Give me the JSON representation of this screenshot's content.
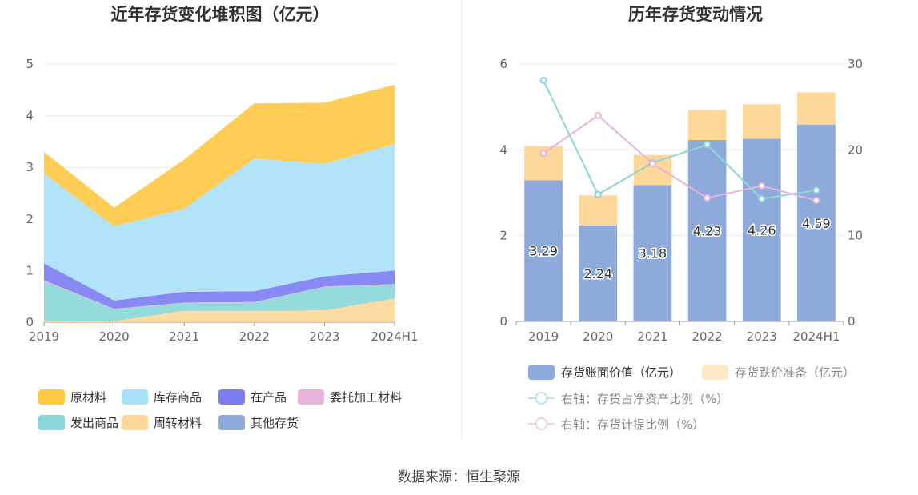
{
  "source_label": "数据来源：恒生聚源",
  "chart_data": [
    {
      "type": "area",
      "stacked": true,
      "title": "近年存货变化堆积图（亿元）",
      "categories": [
        "2019",
        "2020",
        "2021",
        "2022",
        "2023",
        "2024H1"
      ],
      "ylim": [
        0,
        5
      ],
      "yticks": [
        "0",
        "1",
        "2",
        "3",
        "4",
        "5"
      ],
      "grid": true,
      "legend_position": "bottom",
      "series": [
        {
          "name": "其他存货",
          "color": "#8eaadb",
          "values": [
            0,
            0,
            0,
            0,
            0,
            0
          ]
        },
        {
          "name": "周转材料",
          "color": "#fdd89a",
          "values": [
            0.03,
            0.02,
            0.22,
            0.22,
            0.23,
            0.46
          ]
        },
        {
          "name": "发出商品",
          "color": "#8ad6d8",
          "values": [
            0.76,
            0.23,
            0.15,
            0.16,
            0.45,
            0.27
          ]
        },
        {
          "name": "委托加工材料",
          "color": "#e8b3d8",
          "values": [
            0.02,
            0.01,
            0.01,
            0.01,
            0.01,
            0.01
          ]
        },
        {
          "name": "在产品",
          "color": "#7b7cf2",
          "values": [
            0.33,
            0.16,
            0.21,
            0.21,
            0.2,
            0.26
          ]
        },
        {
          "name": "库存商品",
          "color": "#a9e1fa",
          "values": [
            1.74,
            1.44,
            1.61,
            2.57,
            2.18,
            2.45
          ]
        },
        {
          "name": "原材料",
          "color": "#ffc841",
          "values": [
            0.42,
            0.36,
            0.95,
            1.07,
            1.18,
            1.15
          ]
        }
      ],
      "legend_order": [
        "原材料",
        "库存商品",
        "在产品",
        "委托加工材料",
        "发出商品",
        "周转材料",
        "其他存货"
      ]
    },
    {
      "type": "bar",
      "stacked": true,
      "title": "历年存货变动情况",
      "categories": [
        "2019",
        "2020",
        "2021",
        "2022",
        "2023",
        "2024H1"
      ],
      "ylim": [
        0,
        6
      ],
      "yticks": [
        "0",
        "2",
        "4",
        "6"
      ],
      "y2lim": [
        0,
        30
      ],
      "y2ticks": [
        "0",
        "10",
        "20",
        "30"
      ],
      "grid": true,
      "legend_position": "bottom",
      "series": [
        {
          "name": "存货账面价值（亿元）",
          "kind": "bar",
          "color": "#8eaadb",
          "values": [
            3.29,
            2.24,
            3.18,
            4.23,
            4.26,
            4.59
          ],
          "labels": [
            "3.29",
            "2.24",
            "3.18",
            "4.23",
            "4.26",
            "4.59"
          ]
        },
        {
          "name": "存货跌价准备（亿元）",
          "kind": "bar",
          "color": "#fdd89a",
          "values": [
            0.8,
            0.7,
            0.7,
            0.7,
            0.8,
            0.75
          ]
        },
        {
          "name": "右轴：存货占净资产比例（%）",
          "kind": "line",
          "axis": "right",
          "color": "#8ad6d8",
          "values": [
            28.1,
            14.8,
            18.5,
            20.6,
            14.3,
            15.3
          ]
        },
        {
          "name": "右轴：存货计提比例（%）",
          "kind": "line",
          "axis": "right",
          "color": "#e8b3d8",
          "values": [
            19.6,
            24.0,
            18.4,
            14.4,
            15.8,
            14.1
          ]
        }
      ]
    }
  ]
}
